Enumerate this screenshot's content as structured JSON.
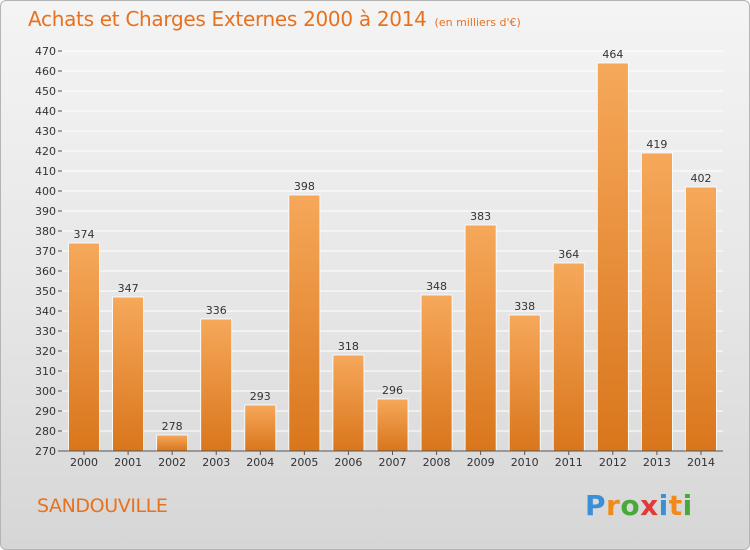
{
  "title": "Achats et Charges Externes 2000 à 2014",
  "subtitle": "(en milliers d'€)",
  "commune": "SANDOUVILLE",
  "logo": {
    "text": "Proxiti",
    "colors": [
      "#3b8fd6",
      "#f08a1c",
      "#4aa83a",
      "#e03a3a"
    ]
  },
  "colors": {
    "accent": "#e8711f",
    "bar_top": "#f6a85a",
    "bar_bottom": "#d9761c",
    "grid": "#ffffff"
  },
  "chart_data": {
    "type": "bar",
    "categories": [
      "2000",
      "2001",
      "2002",
      "2003",
      "2004",
      "2005",
      "2006",
      "2007",
      "2008",
      "2009",
      "2010",
      "2011",
      "2012",
      "2013",
      "2014"
    ],
    "values": [
      374,
      347,
      278,
      336,
      293,
      398,
      318,
      296,
      348,
      383,
      338,
      364,
      464,
      419,
      402
    ],
    "ylim": [
      270,
      470
    ],
    "ytick_step": 10,
    "grid": true
  }
}
